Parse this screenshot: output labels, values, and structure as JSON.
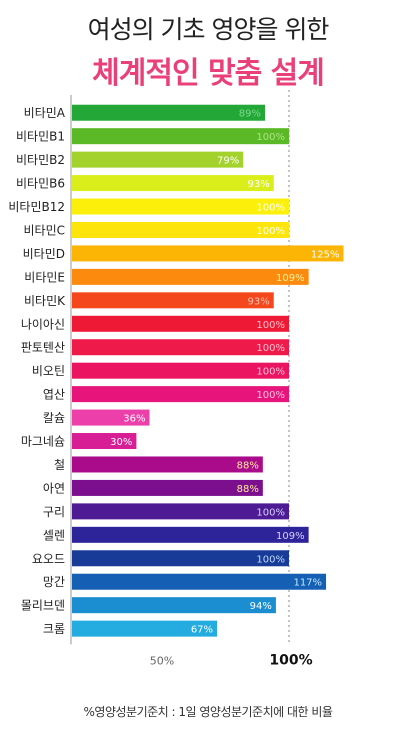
{
  "header": {
    "title": "여성의 기초 영양을 위한",
    "subtitle": "체계적인 맞춤 설계"
  },
  "footnote": "%영양성분기준치 : 1일 영양성분기준치에 대한 비율",
  "chart_data": {
    "type": "bar",
    "orientation": "horizontal",
    "grid": false,
    "reference_line": 100,
    "categories": [
      "비타민A",
      "비타민B1",
      "비타민B2",
      "비타민B6",
      "비타민B12",
      "비타민C",
      "비타민D",
      "비타민E",
      "비타민K",
      "나이아신",
      "판토텐산",
      "비오틴",
      "엽산",
      "칼슘",
      "마그네슘",
      "철",
      "아연",
      "구리",
      "셀렌",
      "요오드",
      "망간",
      "몰리브덴",
      "크롬"
    ],
    "values": [
      89,
      100,
      79,
      93,
      100,
      100,
      125,
      109,
      93,
      100,
      100,
      100,
      100,
      36,
      30,
      88,
      88,
      100,
      109,
      100,
      117,
      94,
      67
    ],
    "value_labels": [
      "89%",
      "100%",
      "79%",
      "93%",
      "100%",
      "100%",
      "125%",
      "109%",
      "93%",
      "100%",
      "100%",
      "100%",
      "100%",
      "36%",
      "30%",
      "88%",
      "88%",
      "100%",
      "109%",
      "100%",
      "117%",
      "94%",
      "67%"
    ],
    "bar_colors": [
      "#23a838",
      "#5bb927",
      "#a4d22c",
      "#d9ee1a",
      "#fcf00a",
      "#fde40b",
      "#fcb504",
      "#fb8a0e",
      "#f4471c",
      "#ee1a35",
      "#ed1a4a",
      "#ea1461",
      "#e6147b",
      "#ec3fa9",
      "#d81e95",
      "#aa0b8b",
      "#7b0f8e",
      "#4d1c95",
      "#2d249a",
      "#173b96",
      "#1560b4",
      "#1a8ed0",
      "#24abe0"
    ],
    "value_label_colors": [
      "#7cd88b",
      "#a7e47f",
      "#ffffff",
      "#ffffff",
      "#ffffff",
      "#ffffff",
      "#ffffff",
      "#fff3a0",
      "#ffc0b0",
      "#ffc0c8",
      "#ffc0d0",
      "#ffc0d8",
      "#ffc0e0",
      "#ffffff",
      "#ffffff",
      "#ffeb9c",
      "#ffeb9c",
      "#d8d0ff",
      "#d8d0ff",
      "#c0d8ff",
      "#c0e8ff",
      "#ffffff",
      "#ffffff"
    ],
    "x_ticks": [
      {
        "value": 50,
        "label": "50%"
      },
      {
        "value": 100,
        "label": "100%"
      }
    ],
    "xlim": [
      0,
      150
    ]
  }
}
